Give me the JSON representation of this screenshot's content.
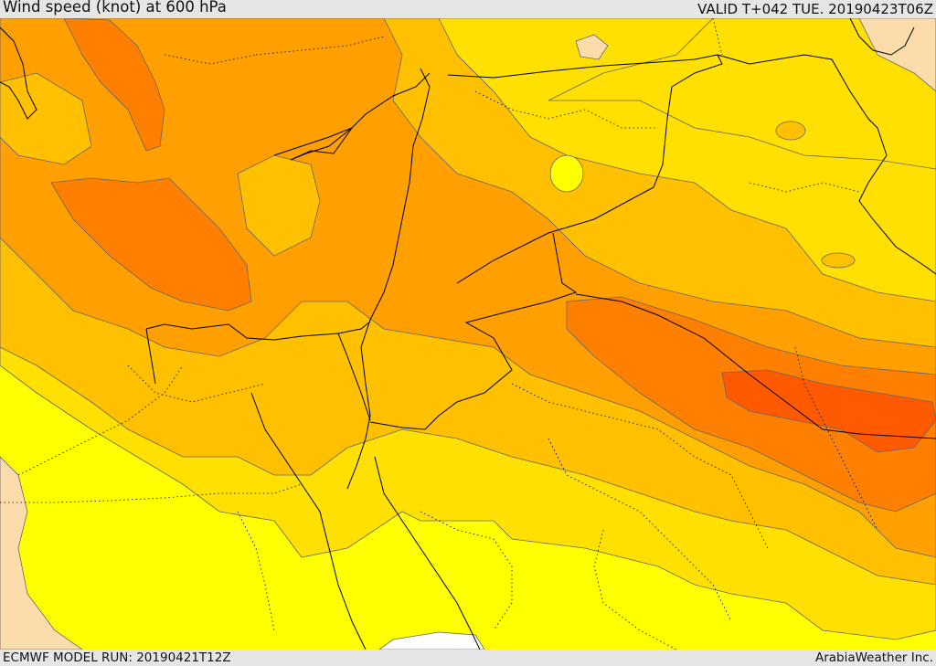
{
  "header": {
    "title": "Wind speed (knot) at 600 hPa",
    "valid": "VALID T+042 TUE. 20190423T06Z"
  },
  "footer": {
    "model_run": "ECMWF MODEL RUN: 20190421T12Z",
    "provider": "ArabiaWeather Inc."
  },
  "map": {
    "field": "wind-speed-contours",
    "colors": {
      "level_1": "#ffff00",
      "level_2": "#ffe000",
      "level_3": "#ffc000",
      "level_4": "#ffa000",
      "level_5": "#ff7f00",
      "level_6": "#ff5a00",
      "low_wind": "#fcdcaa",
      "coast_and_border": "#000000",
      "contour_line": "#555555"
    }
  }
}
